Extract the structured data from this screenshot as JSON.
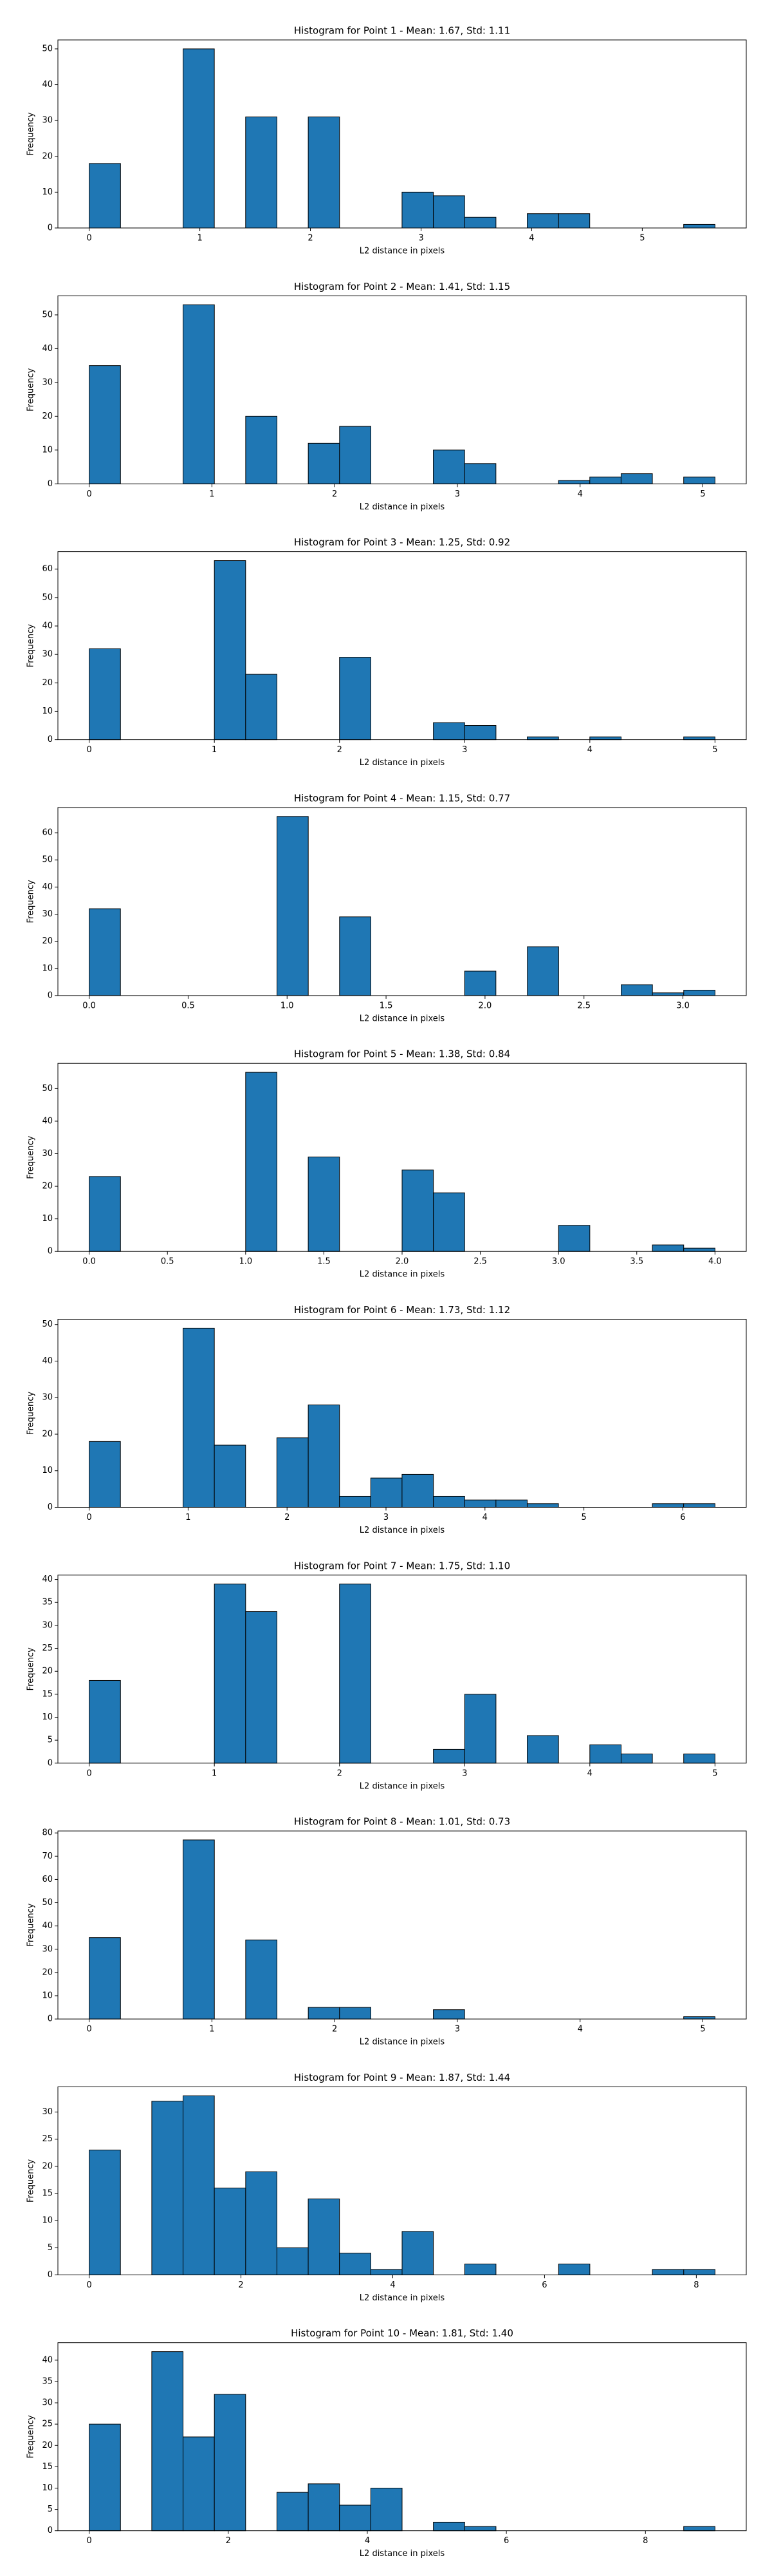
{
  "chart_data": [
    {
      "type": "histogram",
      "title": "Histogram for Point 1 - Mean: 1.67, Std: 1.11",
      "xlabel": "L2 distance in pixels",
      "ylabel": "Frequency",
      "color": "#1f77b4",
      "bins": [
        0,
        0.283,
        0.566,
        0.849,
        1.131,
        1.414,
        1.697,
        1.98,
        2.263,
        2.546,
        2.828,
        3.111,
        3.394,
        3.677,
        3.96,
        4.243,
        4.525,
        4.808,
        5.091,
        5.374,
        5.657
      ],
      "values": [
        18,
        0,
        0,
        50,
        0,
        31,
        0,
        31,
        0,
        0,
        10,
        9,
        3,
        0,
        4,
        4,
        0,
        0,
        0,
        1
      ],
      "xlim": [
        -0.283,
        5.94
      ],
      "ylim": [
        0,
        52.5
      ],
      "xticks": [
        0,
        1,
        2,
        3,
        4,
        5
      ],
      "yticks": [
        0,
        10,
        20,
        30,
        40,
        50
      ]
    },
    {
      "type": "histogram",
      "title": "Histogram for Point 2 - Mean: 1.41, Std: 1.15",
      "xlabel": "L2 distance in pixels",
      "ylabel": "Frequency",
      "color": "#1f77b4",
      "bins": [
        0,
        0.255,
        0.51,
        0.765,
        1.02,
        1.275,
        1.53,
        1.785,
        2.04,
        2.295,
        2.55,
        2.804,
        3.059,
        3.314,
        3.569,
        3.824,
        4.079,
        4.334,
        4.589,
        4.844,
        5.099
      ],
      "values": [
        35,
        0,
        0,
        53,
        0,
        20,
        0,
        12,
        17,
        0,
        0,
        10,
        6,
        0,
        0,
        1,
        2,
        3,
        0,
        2
      ],
      "xlim": [
        -0.255,
        5.354
      ],
      "ylim": [
        0,
        55.65
      ],
      "xticks": [
        0,
        1,
        2,
        3,
        4,
        5
      ],
      "yticks": [
        0,
        10,
        20,
        30,
        40,
        50
      ]
    },
    {
      "type": "histogram",
      "title": "Histogram for Point 3 - Mean: 1.25, Std: 0.92",
      "xlabel": "L2 distance in pixels",
      "ylabel": "Frequency",
      "color": "#1f77b4",
      "bins": [
        0,
        0.25,
        0.5,
        0.75,
        1,
        1.25,
        1.5,
        1.75,
        2,
        2.25,
        2.5,
        2.75,
        3,
        3.25,
        3.5,
        3.75,
        4,
        4.25,
        4.5,
        4.75,
        5
      ],
      "values": [
        32,
        0,
        0,
        0,
        63,
        23,
        0,
        0,
        29,
        0,
        0,
        6,
        5,
        0,
        1,
        0,
        1,
        0,
        0,
        1
      ],
      "xlim": [
        -0.25,
        5.25
      ],
      "ylim": [
        0,
        66.15
      ],
      "xticks": [
        0,
        1,
        2,
        3,
        4,
        5
      ],
      "yticks": [
        0,
        10,
        20,
        30,
        40,
        50,
        60
      ]
    },
    {
      "type": "histogram",
      "title": "Histogram for Point 4 - Mean: 1.15, Std: 0.77",
      "xlabel": "L2 distance in pixels",
      "ylabel": "Frequency",
      "color": "#1f77b4",
      "bins": [
        0,
        0.158,
        0.316,
        0.474,
        0.632,
        0.791,
        0.949,
        1.107,
        1.265,
        1.423,
        1.581,
        1.739,
        1.897,
        2.055,
        2.214,
        2.372,
        2.53,
        2.688,
        2.846,
        3.004,
        3.162
      ],
      "values": [
        32,
        0,
        0,
        0,
        0,
        0,
        66,
        0,
        29,
        0,
        0,
        0,
        9,
        0,
        18,
        0,
        0,
        4,
        1,
        2
      ],
      "xlim": [
        -0.158,
        3.32
      ],
      "ylim": [
        0,
        69.3
      ],
      "xticks": [
        {
          "value": 0,
          "label": "0.0"
        },
        0.5,
        {
          "value": 1,
          "label": "1.0"
        },
        1.5,
        {
          "value": 2,
          "label": "2.0"
        },
        2.5,
        {
          "value": 3,
          "label": "3.0"
        }
      ],
      "yticks": [
        0,
        10,
        20,
        30,
        40,
        50,
        60
      ]
    },
    {
      "type": "histogram",
      "title": "Histogram for Point 5 - Mean: 1.38, Std: 0.84",
      "xlabel": "L2 distance in pixels",
      "ylabel": "Frequency",
      "color": "#1f77b4",
      "bins": [
        0,
        0.2,
        0.4,
        0.6,
        0.8,
        1,
        1.2,
        1.4,
        1.6,
        1.8,
        2,
        2.2,
        2.4,
        2.6,
        2.8,
        3,
        3.2,
        3.4,
        3.6,
        3.8,
        4
      ],
      "values": [
        23,
        0,
        0,
        0,
        0,
        55,
        0,
        29,
        0,
        0,
        25,
        18,
        0,
        0,
        0,
        8,
        0,
        0,
        2,
        1
      ],
      "xlim": [
        -0.2,
        4.2
      ],
      "ylim": [
        0,
        57.75
      ],
      "xticks": [
        {
          "value": 0,
          "label": "0.0"
        },
        0.5,
        {
          "value": 1,
          "label": "1.0"
        },
        1.5,
        {
          "value": 2,
          "label": "2.0"
        },
        2.5,
        {
          "value": 3,
          "label": "3.0"
        },
        3.5,
        {
          "value": 4,
          "label": "4.0"
        }
      ],
      "yticks": [
        0,
        10,
        20,
        30,
        40,
        50
      ]
    },
    {
      "type": "histogram",
      "title": "Histogram for Point 6 - Mean: 1.73, Std: 1.12",
      "xlabel": "L2 distance in pixels",
      "ylabel": "Frequency",
      "color": "#1f77b4",
      "bins": [
        0,
        0.316,
        0.632,
        0.949,
        1.265,
        1.581,
        1.897,
        2.214,
        2.53,
        2.846,
        3.162,
        3.479,
        3.795,
        4.111,
        4.427,
        4.743,
        5.06,
        5.376,
        5.692,
        6.008,
        6.325
      ],
      "values": [
        18,
        0,
        0,
        49,
        17,
        0,
        19,
        28,
        3,
        8,
        9,
        3,
        2,
        2,
        1,
        0,
        0,
        0,
        1,
        1
      ],
      "xlim": [
        -0.316,
        6.641
      ],
      "ylim": [
        0,
        51.45
      ],
      "xticks": [
        0,
        1,
        2,
        3,
        4,
        5,
        6
      ],
      "yticks": [
        0,
        10,
        20,
        30,
        40,
        50
      ]
    },
    {
      "type": "histogram",
      "title": "Histogram for Point 7 - Mean: 1.75, Std: 1.10",
      "xlabel": "L2 distance in pixels",
      "ylabel": "Frequency",
      "color": "#1f77b4",
      "bins": [
        0,
        0.25,
        0.5,
        0.75,
        1,
        1.25,
        1.5,
        1.75,
        2,
        2.25,
        2.5,
        2.75,
        3,
        3.25,
        3.5,
        3.75,
        4,
        4.25,
        4.5,
        4.75,
        5
      ],
      "values": [
        18,
        0,
        0,
        0,
        39,
        33,
        0,
        0,
        39,
        0,
        0,
        3,
        15,
        0,
        6,
        0,
        4,
        2,
        0,
        2
      ],
      "xlim": [
        -0.25,
        5.25
      ],
      "ylim": [
        0,
        40.95
      ],
      "xticks": [
        0,
        1,
        2,
        3,
        4,
        5
      ],
      "yticks": [
        0,
        5,
        10,
        15,
        20,
        25,
        30,
        35,
        40
      ]
    },
    {
      "type": "histogram",
      "title": "Histogram for Point 8 - Mean: 1.01, Std: 0.73",
      "xlabel": "L2 distance in pixels",
      "ylabel": "Frequency",
      "color": "#1f77b4",
      "bins": [
        0,
        0.255,
        0.51,
        0.765,
        1.02,
        1.275,
        1.53,
        1.785,
        2.04,
        2.295,
        2.55,
        2.804,
        3.059,
        3.314,
        3.569,
        3.824,
        4.079,
        4.334,
        4.589,
        4.844,
        5.099
      ],
      "values": [
        35,
        0,
        0,
        77,
        0,
        34,
        0,
        5,
        5,
        0,
        0,
        4,
        0,
        0,
        0,
        0,
        0,
        0,
        0,
        1
      ],
      "xlim": [
        -0.255,
        5.354
      ],
      "ylim": [
        0,
        80.85
      ],
      "xticks": [
        0,
        1,
        2,
        3,
        4,
        5
      ],
      "yticks": [
        0,
        10,
        20,
        30,
        40,
        50,
        60,
        70,
        80
      ]
    },
    {
      "type": "histogram",
      "title": "Histogram for Point 9 - Mean: 1.87, Std: 1.44",
      "xlabel": "L2 distance in pixels",
      "ylabel": "Frequency",
      "color": "#1f77b4",
      "bins": [
        0,
        0.412,
        0.825,
        1.237,
        1.649,
        2.062,
        2.474,
        2.886,
        3.298,
        3.711,
        4.123,
        4.535,
        4.948,
        5.36,
        5.772,
        6.185,
        6.597,
        7.009,
        7.421,
        7.834,
        8.246
      ],
      "values": [
        23,
        0,
        32,
        33,
        16,
        19,
        5,
        14,
        4,
        1,
        8,
        0,
        2,
        0,
        0,
        2,
        0,
        0,
        1,
        1
      ],
      "xlim": [
        -0.412,
        8.658
      ],
      "ylim": [
        0,
        34.65
      ],
      "xticks": [
        0,
        2,
        4,
        6,
        8
      ],
      "yticks": [
        0,
        5,
        10,
        15,
        20,
        25,
        30
      ]
    },
    {
      "type": "histogram",
      "title": "Histogram for Point 10 - Mean: 1.81, Std: 1.40",
      "xlabel": "L2 distance in pixels",
      "ylabel": "Frequency",
      "color": "#1f77b4",
      "bins": [
        0,
        0.45,
        0.9,
        1.35,
        1.8,
        2.25,
        2.7,
        3.15,
        3.6,
        4.05,
        4.5,
        4.95,
        5.4,
        5.85,
        6.3,
        6.75,
        7.2,
        7.65,
        8.1,
        8.55,
        9
      ],
      "values": [
        25,
        0,
        42,
        22,
        32,
        0,
        9,
        11,
        6,
        10,
        0,
        2,
        1,
        0,
        0,
        0,
        0,
        0,
        0,
        1
      ],
      "xlim": [
        -0.45,
        9.45
      ],
      "ylim": [
        0,
        44.1
      ],
      "xticks": [
        0,
        2,
        4,
        6,
        8
      ],
      "yticks": [
        0,
        5,
        10,
        15,
        20,
        25,
        30,
        35,
        40
      ]
    }
  ]
}
